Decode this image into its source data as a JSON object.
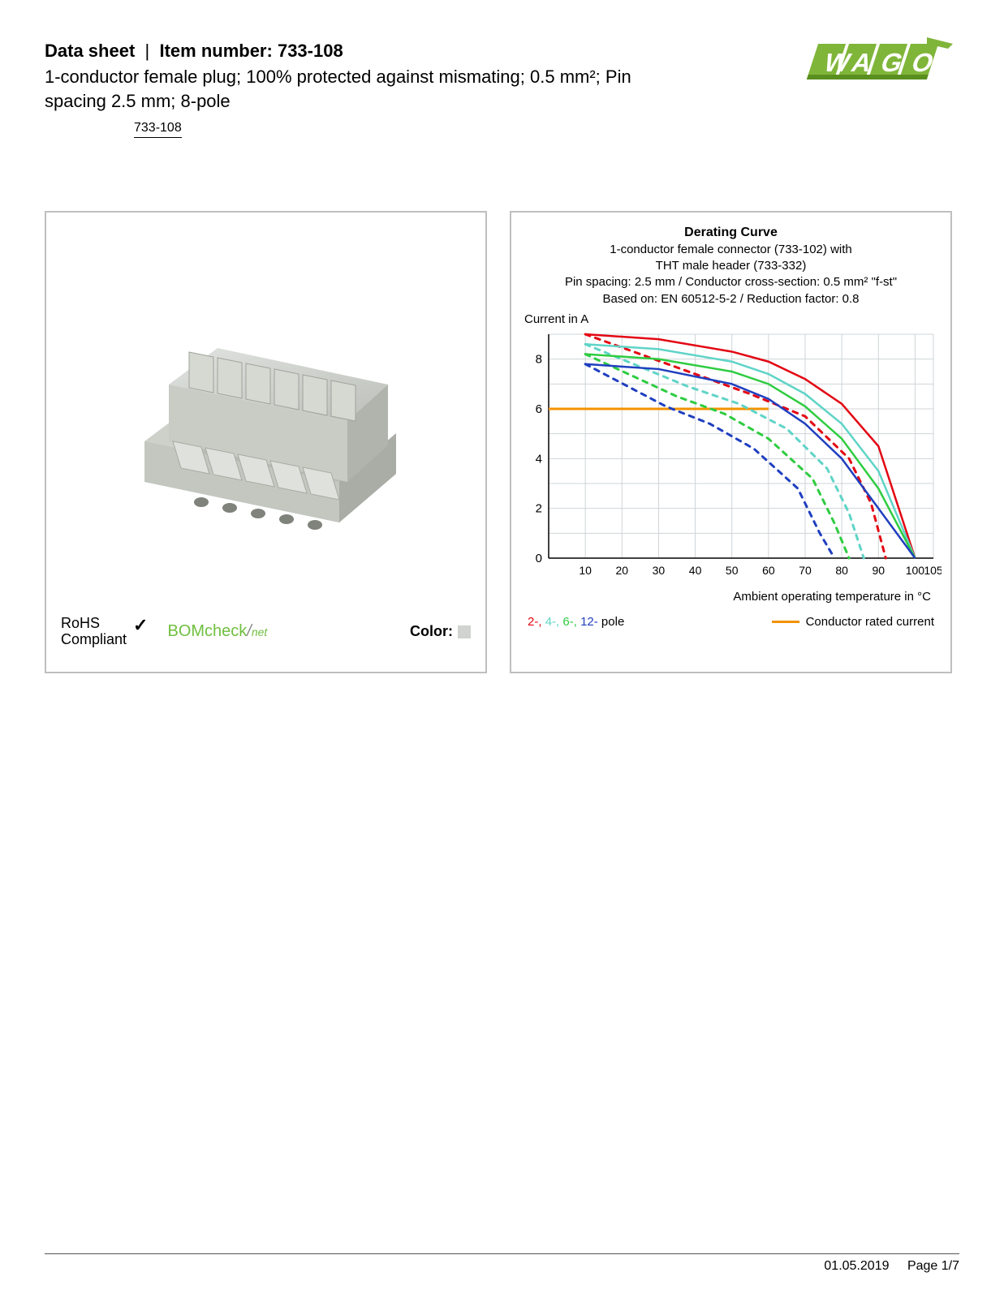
{
  "header": {
    "datasheet_label": "Data sheet",
    "item_number_label": "Item number:",
    "item_number": "733-108",
    "subtitle": "1-conductor female plug; 100% protected against mismating; 0.5 mm²; Pin spacing 2.5 mm; 8-pole",
    "item_code_link": "733-108"
  },
  "logo": {
    "text": "WAGO",
    "fill": "#7fb539",
    "shadow": "#5a8f1f"
  },
  "product_card": {
    "rohs_line1": "RoHS",
    "rohs_line2": "Compliant",
    "bomcheck_text": "BOMcheck",
    "bomcheck_suffix": "net",
    "color_label": "Color:",
    "color_swatch": "#d0d3cf"
  },
  "chart": {
    "title": "Derating Curve",
    "sub1": "1-conductor female connector (733-102) with",
    "sub2": "THT male header (733-332)",
    "sub3": "Pin spacing: 2.5 mm / Conductor cross-section: 0.5 mm² \"f-st\"",
    "sub4": "Based on: EN 60512-5-2 / Reduction factor: 0.8",
    "y_axis_label": "Current in A",
    "x_axis_label": "Ambient operating temperature in °C",
    "y_ticks": [
      0,
      2,
      4,
      6,
      8
    ],
    "y_min": 0,
    "y_max": 9,
    "x_ticks": [
      10,
      20,
      30,
      40,
      50,
      60,
      70,
      80,
      90,
      100,
      105
    ],
    "x_min": 0,
    "x_max": 105,
    "grid_color": "#cfd4d8",
    "background": "#ffffff",
    "series": {
      "p2": {
        "color": "#e30613",
        "solid": [
          [
            10,
            9.0
          ],
          [
            30,
            8.8
          ],
          [
            50,
            8.3
          ],
          [
            60,
            7.9
          ],
          [
            70,
            7.2
          ],
          [
            80,
            6.2
          ],
          [
            90,
            4.5
          ],
          [
            100,
            0
          ]
        ],
        "dashed": [
          [
            10,
            9.0
          ],
          [
            40,
            7.4
          ],
          [
            55,
            6.6
          ],
          [
            70,
            5.7
          ],
          [
            82,
            4.0
          ],
          [
            88,
            2.2
          ],
          [
            92,
            0
          ]
        ]
      },
      "p4": {
        "color": "#5fd4c7",
        "solid": [
          [
            10,
            8.6
          ],
          [
            30,
            8.4
          ],
          [
            50,
            7.9
          ],
          [
            60,
            7.4
          ],
          [
            70,
            6.6
          ],
          [
            80,
            5.4
          ],
          [
            90,
            3.5
          ],
          [
            100,
            0
          ]
        ],
        "dashed": [
          [
            10,
            8.6
          ],
          [
            38,
            6.9
          ],
          [
            52,
            6.2
          ],
          [
            65,
            5.2
          ],
          [
            76,
            3.6
          ],
          [
            82,
            1.8
          ],
          [
            86,
            0
          ]
        ]
      },
      "p6": {
        "color": "#2ecc40",
        "solid": [
          [
            10,
            8.2
          ],
          [
            30,
            8.0
          ],
          [
            50,
            7.5
          ],
          [
            60,
            7.0
          ],
          [
            70,
            6.1
          ],
          [
            80,
            4.8
          ],
          [
            90,
            2.8
          ],
          [
            100,
            0
          ]
        ],
        "dashed": [
          [
            10,
            8.2
          ],
          [
            35,
            6.5
          ],
          [
            48,
            5.8
          ],
          [
            60,
            4.8
          ],
          [
            72,
            3.2
          ],
          [
            78,
            1.4
          ],
          [
            82,
            0
          ]
        ]
      },
      "p12": {
        "color": "#1f3fbf",
        "solid": [
          [
            10,
            7.8
          ],
          [
            30,
            7.6
          ],
          [
            50,
            7.0
          ],
          [
            60,
            6.4
          ],
          [
            70,
            5.4
          ],
          [
            80,
            4.0
          ],
          [
            90,
            2.0
          ],
          [
            100,
            0
          ]
        ],
        "dashed": [
          [
            10,
            7.8
          ],
          [
            32,
            6.1
          ],
          [
            44,
            5.4
          ],
          [
            56,
            4.4
          ],
          [
            68,
            2.8
          ],
          [
            74,
            1.0
          ],
          [
            78,
            0
          ]
        ]
      },
      "conductor_rated": {
        "color": "#f39200",
        "y": 6.0,
        "x_from": 0,
        "x_to": 60
      }
    },
    "legend": {
      "p2": "2-,",
      "p4": "4-,",
      "p6": "6-,",
      "p12": "12-",
      "pole_suffix": " pole",
      "conductor_label": "Conductor rated current"
    }
  },
  "footer": {
    "date": "01.05.2019",
    "page": "Page 1/7"
  }
}
